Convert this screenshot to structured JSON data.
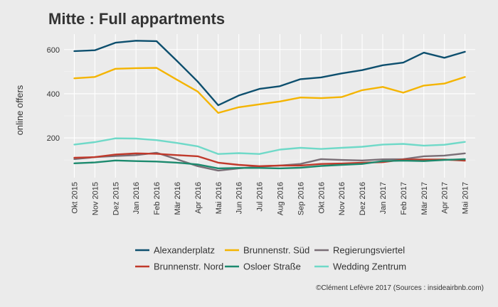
{
  "chart_data": {
    "type": "line",
    "title": "Mitte : Full appartments",
    "xlabel": "",
    "ylabel": "online offers",
    "caption": "©Clément Lefèvre 2017 (Sources : insideairbnb.com)",
    "ylim": [
      20,
      670
    ],
    "yticks": [
      200,
      400,
      600
    ],
    "grid": true,
    "legend_position": "bottom",
    "categories": [
      "Okt 2015",
      "Nov 2015",
      "Dez 2015",
      "Jan 2016",
      "Feb 2016",
      "Mär 2016",
      "Apr 2016",
      "Mai 2016",
      "Jun 2016",
      "Jul 2016",
      "Aug 2016",
      "Sep 2016",
      "Okt 2016",
      "Nov 2016",
      "Dez 2016",
      "Jan 2017",
      "Feb 2017",
      "Mär 2017",
      "Apr 2017",
      "Mai 2017"
    ],
    "series": [
      {
        "name": "Alexanderplatz",
        "color": "#0d4f6e",
        "values": [
          593,
          597,
          631,
          640,
          638,
          548,
          455,
          348,
          392,
          422,
          434,
          466,
          474,
          492,
          507,
          529,
          541,
          586,
          563,
          590
        ]
      },
      {
        "name": "Brunnenstr. Süd",
        "color": "#f4b400",
        "values": [
          470,
          476,
          513,
          516,
          517,
          463,
          410,
          313,
          339,
          352,
          365,
          383,
          380,
          385,
          416,
          431,
          405,
          437,
          446,
          476
        ]
      },
      {
        "name": "Regierungsviertel",
        "color": "#7a6e76",
        "values": [
          104,
          113,
          118,
          122,
          133,
          103,
          72,
          52,
          62,
          70,
          75,
          82,
          104,
          100,
          98,
          103,
          104,
          117,
          120,
          130
        ]
      },
      {
        "name": "Brunnenstr. Nord",
        "color": "#c0392b",
        "values": [
          110,
          113,
          125,
          130,
          128,
          122,
          117,
          88,
          78,
          72,
          75,
          75,
          82,
          84,
          88,
          90,
          102,
          102,
          102,
          97
        ]
      },
      {
        "name": "Osloer Straße",
        "color": "#1c8a6e",
        "values": [
          85,
          89,
          98,
          95,
          93,
          88,
          80,
          62,
          64,
          64,
          62,
          65,
          73,
          78,
          82,
          95,
          97,
          95,
          100,
          104
        ]
      },
      {
        "name": "Wedding Zentrum",
        "color": "#6fd9c8",
        "values": [
          170,
          181,
          198,
          197,
          190,
          177,
          162,
          127,
          131,
          127,
          147,
          155,
          150,
          155,
          160,
          170,
          173,
          165,
          169,
          182
        ]
      }
    ]
  }
}
